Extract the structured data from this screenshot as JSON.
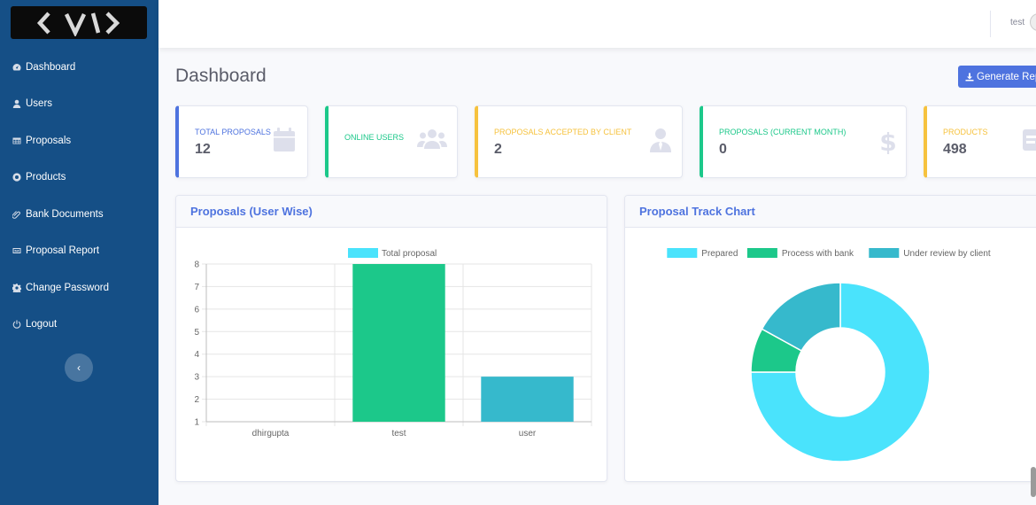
{
  "sidebar": {
    "items": [
      {
        "label": "Dashboard",
        "icon": "dashboard-icon"
      },
      {
        "label": "Users",
        "icon": "user-icon"
      },
      {
        "label": "Proposals",
        "icon": "table-icon"
      },
      {
        "label": "Products",
        "icon": "product-icon"
      },
      {
        "label": "Bank Documents",
        "icon": "paperclip-icon"
      },
      {
        "label": "Proposal Report",
        "icon": "report-icon"
      },
      {
        "label": "Change Password",
        "icon": "gear-icon"
      },
      {
        "label": "Logout",
        "icon": "power-icon"
      }
    ],
    "toggle_icon": "chevron-left-icon"
  },
  "topbar": {
    "user": "test"
  },
  "page": {
    "title": "Dashboard",
    "generate_label": "Generate Rep"
  },
  "stats": [
    {
      "label": "TOTAL PROPOSALS",
      "value": "12",
      "color": "#4e73df",
      "icon": "calendar-icon"
    },
    {
      "label": "ONLINE USERS",
      "value": "",
      "color": "#1cc88a",
      "icon": "users-icon"
    },
    {
      "label": "PROPOSALS ACCEPTED BY CLIENT",
      "value": "2",
      "color": "#f6c23e",
      "icon": "user-tie-icon"
    },
    {
      "label": "PROPOSALS (CURRENT MONTH)",
      "value": "0",
      "color": "#1cc88a",
      "icon": "dollar-icon"
    },
    {
      "label": "PRODUCTS",
      "value": "498",
      "color": "#f6c23e",
      "icon": "box-icon"
    }
  ],
  "bar_card": {
    "title": "Proposals (User Wise)"
  },
  "donut_card": {
    "title": "Proposal Track Chart"
  },
  "chart_data": [
    {
      "type": "bar",
      "title": "Proposals (User Wise)",
      "categories": [
        "dhirgupta",
        "test",
        "user"
      ],
      "series": [
        {
          "name": "Total proposal",
          "values": [
            1,
            8,
            3
          ]
        }
      ],
      "bar_colors": [
        "#4ae3fc",
        "#1cc88a",
        "#36b9cc"
      ],
      "yticks": [
        1,
        2,
        3,
        4,
        5,
        6,
        7,
        8
      ],
      "ylim": [
        1,
        8
      ],
      "grid": true,
      "legend": "top-center"
    },
    {
      "type": "pie",
      "title": "Proposal Track Chart",
      "labels": [
        "Prepared",
        "Process with bank",
        "Under review by client"
      ],
      "values": [
        75,
        8,
        17
      ],
      "colors": [
        "#4ae3fc",
        "#1cc88a",
        "#36b9cc"
      ],
      "legend": "top-center"
    }
  ]
}
